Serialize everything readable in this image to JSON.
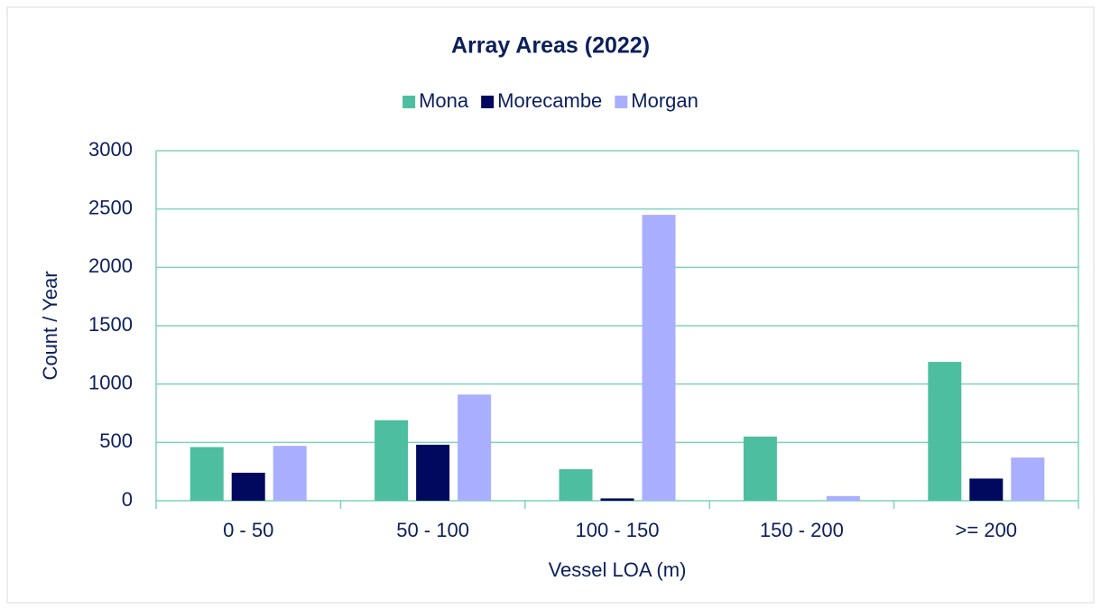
{
  "chart_data": {
    "type": "bar",
    "title": "Array Areas (2022)",
    "x_label": "Vessel LOA (m)",
    "y_label": "Count / Year",
    "categories": [
      "0 - 50",
      "50 - 100",
      "100 - 150",
      "150 - 200",
      ">= 200"
    ],
    "series": [
      {
        "name": "Mona",
        "color": "#4dbfa0",
        "values": [
          460,
          690,
          270,
          550,
          1190
        ]
      },
      {
        "name": "Morecambe",
        "color": "#00095e",
        "values": [
          240,
          480,
          20,
          0,
          190
        ]
      },
      {
        "name": "Morgan",
        "color": "#aaaeff",
        "values": [
          470,
          910,
          2450,
          40,
          370
        ]
      }
    ],
    "ylim": [
      0,
      3000
    ],
    "yticks": [
      0,
      500,
      1000,
      1500,
      2000,
      2500,
      3000
    ],
    "grid": true,
    "legend": "top"
  }
}
